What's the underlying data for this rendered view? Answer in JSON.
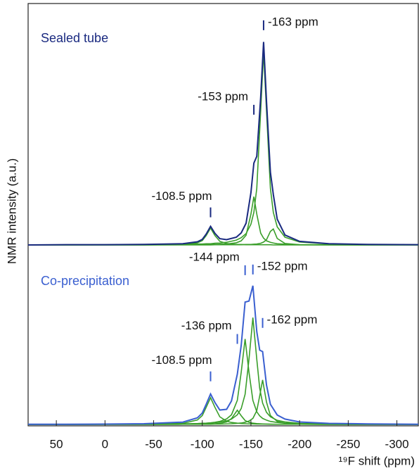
{
  "chart_data": [
    {
      "type": "line",
      "title": "Sealed tube",
      "ylabel": "NMR intensity (a.u.)",
      "xlim": [
        79,
        -322
      ],
      "ylim": [
        0,
        100
      ],
      "x": [
        79,
        40,
        0,
        -40,
        -80,
        -95,
        -100,
        -104,
        -108.5,
        -113,
        -118,
        -125,
        -135,
        -140,
        -145,
        -150,
        -153,
        -156,
        -160,
        -163,
        -166,
        -170,
        -173,
        -177,
        -185,
        -200,
        -230,
        -270,
        -322
      ],
      "series": [
        {
          "name": "Sealed tube",
          "color": "#1a2a80",
          "values": [
            0,
            0.1,
            0.1,
            0.2,
            0.5,
            1.3,
            2.3,
            4.5,
            7.7,
            4.8,
            2.6,
            2.2,
            3.2,
            5.0,
            9.0,
            21.7,
            33.9,
            36.7,
            61.1,
            84.1,
            59.4,
            30.1,
            20.9,
            10.7,
            4.1,
            1.5,
            0.5,
            0.2,
            0.1
          ]
        },
        {
          "color": "#3a9e2a",
          "values": [
            0,
            0,
            0,
            0,
            0.2,
            0.9,
            1.8,
            3.9,
            7,
            3.9,
            1.5,
            0.6,
            0.2,
            0.2,
            0.1,
            0.1,
            0.1,
            0.1,
            0.1,
            0.1,
            0.1,
            0.1,
            0,
            0,
            0,
            0,
            0,
            0,
            0
          ]
        },
        {
          "color": "#3a9e2a",
          "values": [
            0,
            0,
            0,
            0,
            0.1,
            0.1,
            0.1,
            0.1,
            0.2,
            0.2,
            0.3,
            0.4,
            0.9,
            1.7,
            4,
            12.8,
            20,
            12.8,
            4.9,
            2.8,
            1.7,
            1.1,
            0.8,
            0.5,
            0.3,
            0.1,
            0.1,
            0,
            0
          ]
        },
        {
          "color": "#3a9e2a",
          "values": [
            0,
            0,
            0.1,
            0.1,
            0.2,
            0.4,
            0.4,
            0.5,
            0.5,
            0.7,
            0.8,
            1.1,
            2.0,
            3.0,
            4.7,
            8.6,
            13.5,
            23.4,
            55.4,
            80,
            55.4,
            23.4,
            13.5,
            7.5,
            3.2,
            1.2,
            0.4,
            0.1,
            0.1
          ]
        },
        {
          "color": "#3a9e2a",
          "values": [
            0,
            0,
            0,
            0,
            0,
            0,
            0,
            0,
            0,
            0.1,
            0.1,
            0.1,
            0.1,
            0.1,
            0.2,
            0.2,
            0.3,
            0.4,
            0.7,
            1.2,
            2.2,
            5.6,
            6.6,
            2.7,
            0.6,
            0.1,
            0,
            0,
            0
          ]
        }
      ],
      "annotations": [
        {
          "text": "-163 ppm",
          "x": -163,
          "y": 91,
          "side": "right"
        },
        {
          "text": "-153 ppm",
          "x": -153,
          "y": 56,
          "side": "left"
        },
        {
          "text": "-108.5 ppm",
          "x": -108.5,
          "y": 13.5,
          "side": "above"
        }
      ]
    },
    {
      "type": "line",
      "title": "Co-precipitation",
      "xlabel": "¹⁹F shift (ppm)",
      "xlim": [
        79,
        -322
      ],
      "ylim": [
        0,
        100
      ],
      "xticks": [
        50,
        0,
        -50,
        -100,
        -150,
        -200,
        -250,
        -300
      ],
      "x": [
        79,
        40,
        0,
        -40,
        -80,
        -95,
        -100,
        -104,
        -108.5,
        -113,
        -118,
        -125,
        -130,
        -136,
        -140,
        -144,
        -148,
        -152,
        -156,
        -159,
        -162,
        -166,
        -170,
        -177,
        -185,
        -200,
        -230,
        -270,
        -322
      ],
      "series": [
        {
          "name": "Co-precipitation",
          "color": "#3a5fd0",
          "values": [
            0.1,
            0.1,
            0.2,
            0.4,
            1.3,
            3.7,
            6.4,
            11.3,
            17.1,
            12.3,
            8.1,
            8.5,
            13.2,
            28.2,
            44.4,
            68.7,
            69.3,
            77.9,
            52.1,
            41.7,
            40.9,
            22.1,
            11.3,
            5.3,
            3.0,
            1.4,
            0.6,
            0.3,
            0.1
          ]
        },
        {
          "color": "#3a9e2a",
          "values": [
            0,
            0,
            0.1,
            0.1,
            0.6,
            2.5,
            5.0,
            9.6,
            15,
            9.6,
            4.3,
            1.8,
            1.1,
            0.7,
            0.5,
            0.4,
            0.3,
            0.3,
            0.2,
            0.2,
            0.2,
            0.2,
            0.1,
            0.1,
            0.1,
            0.1,
            0,
            0,
            0
          ]
        },
        {
          "color": "#3a9e2a",
          "values": [
            0,
            0,
            0,
            0,
            0.1,
            0.1,
            0.2,
            0.2,
            0.3,
            0.4,
            0.6,
            1.4,
            3.3,
            8,
            4.9,
            2.2,
            1.2,
            0.7,
            0.5,
            0.4,
            0.3,
            0.2,
            0.2,
            0.1,
            0.1,
            0.1,
            0,
            0,
            0
          ]
        },
        {
          "color": "#3a9e2a",
          "values": [
            0,
            0,
            0.1,
            0.1,
            0.3,
            0.5,
            0.6,
            0.7,
            0.9,
            1.2,
            1.7,
            3.1,
            5.4,
            13.5,
            29.3,
            48,
            29.3,
            13.5,
            7.1,
            4.8,
            3.4,
            2.4,
            1.7,
            1.1,
            0.7,
            0.4,
            0.2,
            0.1,
            0
          ]
        },
        {
          "color": "#3a9e2a",
          "values": [
            0,
            0,
            0.1,
            0.1,
            0.3,
            0.5,
            0.6,
            0.6,
            0.8,
            1.0,
            1.3,
            2.0,
            3.0,
            5.4,
            8.9,
            16.9,
            36.6,
            60,
            36.6,
            20.3,
            12,
            6.8,
            4.3,
            2.3,
            1.4,
            0.6,
            0.3,
            0.1,
            0.1
          ]
        },
        {
          "color": "#3a9e2a",
          "values": [
            0,
            0,
            0,
            0,
            0.1,
            0.1,
            0.1,
            0.1,
            0.1,
            0.2,
            0.2,
            0.3,
            0.4,
            0.6,
            0.8,
            1.2,
            1.9,
            3.4,
            7.7,
            16,
            25,
            12.5,
            5,
            1.7,
            0.7,
            0.3,
            0.1,
            0,
            0
          ]
        }
      ],
      "annotations": [
        {
          "text": "-144 ppm",
          "x": -144,
          "y": 86.6,
          "side": "left"
        },
        {
          "text": "-152 ppm",
          "x": -152,
          "y": 87,
          "side": "right"
        },
        {
          "text": "-136 ppm",
          "x": -136,
          "y": 48,
          "side": "left"
        },
        {
          "text": "-162 ppm",
          "x": -162,
          "y": 57,
          "side": "right"
        },
        {
          "text": "-108.5 ppm",
          "x": -108.5,
          "y": 27,
          "side": "above"
        }
      ]
    }
  ]
}
